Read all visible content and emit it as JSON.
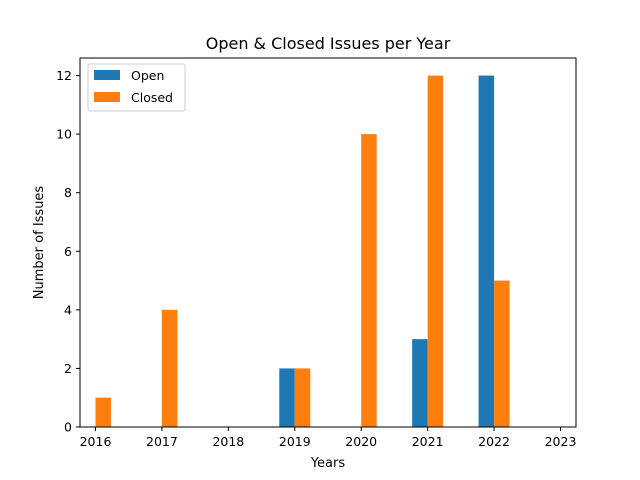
{
  "chart_data": {
    "type": "bar",
    "title": "Open & Closed Issues per Year",
    "xlabel": "Years",
    "ylabel": "Number of Issues",
    "categories": [
      "2016",
      "2017",
      "2018",
      "2019",
      "2020",
      "2021",
      "2022",
      "2023"
    ],
    "series": [
      {
        "name": "Open",
        "color": "#1f77b4",
        "values": [
          0,
          0,
          0,
          2,
          0,
          3,
          12,
          0
        ]
      },
      {
        "name": "Closed",
        "color": "#ff7f0e",
        "values": [
          1,
          4,
          0,
          2,
          10,
          12,
          5,
          0
        ]
      }
    ],
    "ylim": [
      0,
      12.6
    ],
    "yticks": [
      0,
      2,
      4,
      6,
      8,
      10,
      12
    ],
    "grid": false,
    "legend_position": "top-left"
  }
}
